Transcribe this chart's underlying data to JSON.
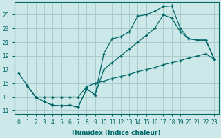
{
  "bg_color": "#cce8e8",
  "grid_color": "#aacccc",
  "line_color": "#006666",
  "xlabel": "Humidex (Indice chaleur)",
  "xlim": [
    -0.5,
    23.5
  ],
  "ylim": [
    10.5,
    26.8
  ],
  "yticks": [
    11,
    13,
    15,
    17,
    19,
    21,
    23,
    25
  ],
  "xticks": [
    0,
    1,
    2,
    3,
    4,
    5,
    6,
    7,
    8,
    9,
    10,
    11,
    12,
    13,
    14,
    15,
    16,
    17,
    18,
    19,
    20,
    21,
    22,
    23
  ],
  "lineA_x": [
    0,
    1,
    2,
    3,
    4,
    5,
    6,
    7,
    8,
    9,
    10,
    11,
    12,
    13,
    14,
    15,
    16,
    17,
    18,
    19,
    20,
    21,
    22,
    23
  ],
  "lineA_y": [
    16.5,
    14.7,
    13.0,
    12.3,
    11.8,
    11.7,
    11.8,
    11.5,
    14.2,
    13.3,
    19.3,
    21.5,
    21.8,
    22.5,
    24.8,
    25.0,
    25.5,
    26.2,
    26.3,
    23.0,
    21.5,
    21.3,
    21.3,
    18.5
  ],
  "lineB_x": [
    1,
    2,
    3,
    4,
    5,
    6,
    7,
    8,
    9,
    10,
    11,
    12,
    13,
    14,
    15,
    16,
    17,
    18,
    19,
    20,
    21,
    22,
    23
  ],
  "lineB_y": [
    14.7,
    13.0,
    12.3,
    11.8,
    11.7,
    11.8,
    11.5,
    14.2,
    13.3,
    17.0,
    18.0,
    19.0,
    20.0,
    21.0,
    22.0,
    23.0,
    25.0,
    24.5,
    22.5,
    21.5,
    21.3,
    21.3,
    18.5
  ],
  "lineC_x": [
    1,
    2,
    3,
    4,
    5,
    6,
    7,
    8,
    9,
    10,
    11,
    12,
    13,
    14,
    15,
    16,
    17,
    18,
    19,
    20,
    21,
    22,
    23
  ],
  "lineC_y": [
    14.7,
    13.0,
    13.0,
    13.0,
    13.0,
    13.0,
    13.0,
    14.5,
    15.0,
    15.3,
    15.7,
    16.0,
    16.3,
    16.7,
    17.0,
    17.3,
    17.7,
    18.0,
    18.3,
    18.7,
    19.0,
    19.3,
    18.5
  ]
}
